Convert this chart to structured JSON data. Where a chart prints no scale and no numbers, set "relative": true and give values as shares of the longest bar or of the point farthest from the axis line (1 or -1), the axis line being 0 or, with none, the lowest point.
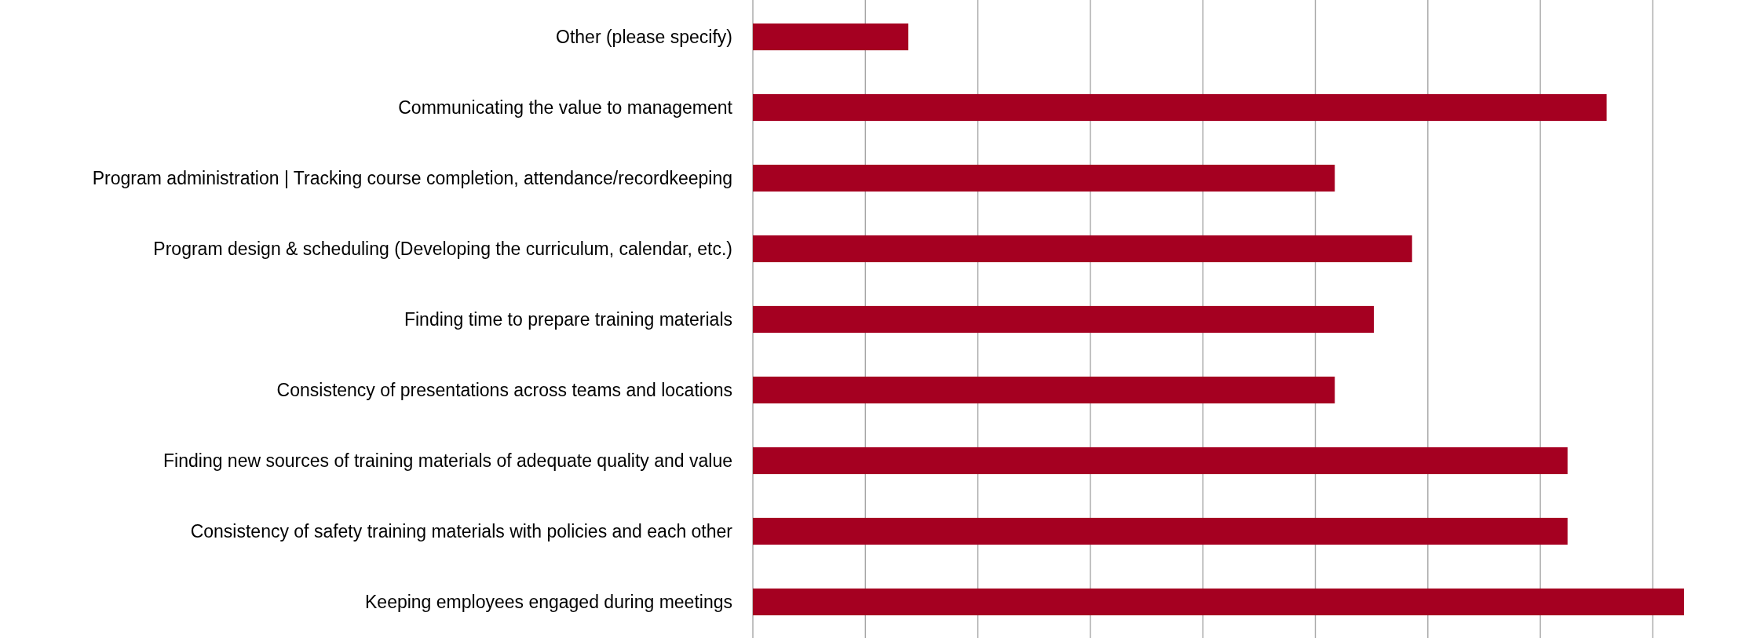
{
  "chart_data": {
    "type": "bar",
    "orientation": "horizontal",
    "relative": true,
    "categories": [
      "Other (please specify)",
      "Communicating the value to management",
      "Program administration | Tracking course completion, attendance/recordkeeping",
      "Program design & scheduling (Developing the curriculum, calendar, etc.)",
      "Finding time to prepare training materials",
      "Consistency of presentations across teams and locations",
      "Finding new sources of training materials of adequate quality and value",
      "Consistency of safety training materials with policies and each other",
      "Keeping employees engaged during meetings"
    ],
    "values": [
      0.167,
      0.917,
      0.625,
      0.708,
      0.667,
      0.625,
      0.875,
      0.875,
      1
    ],
    "color": "#a50021",
    "grid": "x"
  }
}
